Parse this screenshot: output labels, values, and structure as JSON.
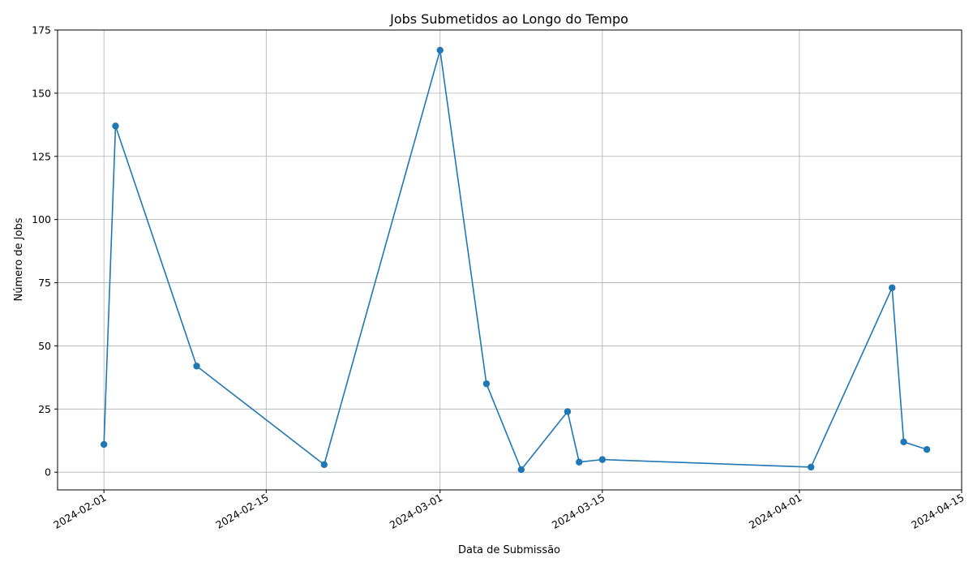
{
  "chart_data": {
    "type": "line",
    "title": "Jobs Submetidos ao Longo do Tempo",
    "xlabel": "Data de Submissão",
    "ylabel": "Número de Jobs",
    "x_type": "date",
    "xlim": [
      "2024-01-28",
      "2024-04-15"
    ],
    "ylim": [
      -7,
      175
    ],
    "x_ticks": [
      "2024-02-01",
      "2024-02-15",
      "2024-03-01",
      "2024-03-15",
      "2024-04-01",
      "2024-04-15"
    ],
    "y_ticks": [
      0,
      25,
      50,
      75,
      100,
      125,
      150,
      175
    ],
    "grid": true,
    "line_color": "#1f77b4",
    "marker": "circle",
    "series": [
      {
        "points": [
          {
            "x": "2024-02-01",
            "y": 11
          },
          {
            "x": "2024-02-02",
            "y": 137
          },
          {
            "x": "2024-02-09",
            "y": 42
          },
          {
            "x": "2024-02-20",
            "y": 3
          },
          {
            "x": "2024-03-01",
            "y": 167
          },
          {
            "x": "2024-03-05",
            "y": 35
          },
          {
            "x": "2024-03-08",
            "y": 1
          },
          {
            "x": "2024-03-12",
            "y": 24
          },
          {
            "x": "2024-03-13",
            "y": 4
          },
          {
            "x": "2024-03-15",
            "y": 5
          },
          {
            "x": "2024-04-02",
            "y": 2
          },
          {
            "x": "2024-04-09",
            "y": 73
          },
          {
            "x": "2024-04-10",
            "y": 12
          },
          {
            "x": "2024-04-12",
            "y": 9
          }
        ]
      }
    ]
  }
}
